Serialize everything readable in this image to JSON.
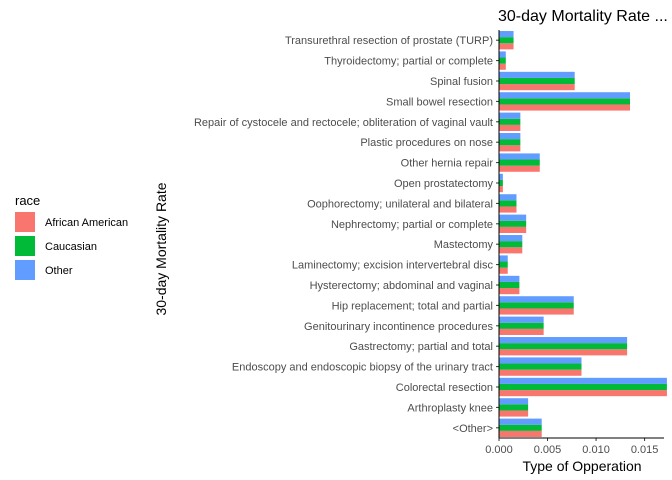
{
  "chart_data": {
    "type": "bar",
    "orientation": "horizontal",
    "title": "30-day Mortality Rate ...",
    "xlabel": "Type of Opperation",
    "ylabel": "30-day Mortality Rate",
    "xlim": [
      0,
      0.017
    ],
    "x_ticks": [
      {
        "value": 0.0,
        "label": "0.000"
      },
      {
        "value": 0.005,
        "label": "0.005"
      },
      {
        "value": 0.01,
        "label": "0.010"
      },
      {
        "value": 0.015,
        "label": "0.015"
      }
    ],
    "grid": false,
    "legend": {
      "title": "race",
      "position": "left"
    },
    "categories": [
      "Transurethral resection of prostate (TURP)",
      "Thyroidectomy; partial or complete",
      "Spinal fusion",
      "Small bowel resection",
      "Repair of cystocele and rectocele; obliteration of vaginal vault",
      "Plastic procedures on nose",
      "Other hernia repair",
      "Open prostatectomy",
      "Oophorectomy; unilateral and bilateral",
      "Nephrectomy; partial or complete",
      "Mastectomy",
      "Laminectomy; excision intervertebral disc",
      "Hysterectomy; abdominal and vaginal",
      "Hip replacement; total and partial",
      "Genitourinary incontinence procedures",
      "Gastrectomy; partial and total",
      "Endoscopy and endoscopic biopsy of the urinary tract",
      "Colorectal resection",
      "Arthroplasty knee",
      "<Other>"
    ],
    "series": [
      {
        "name": "African American",
        "color": "#F8766D",
        "values": [
          0.0015,
          0.0007,
          0.0078,
          0.0135,
          0.0022,
          0.0022,
          0.0042,
          0.0004,
          0.0018,
          0.0028,
          0.0024,
          0.0009,
          0.0021,
          0.0077,
          0.0046,
          0.0132,
          0.0085,
          0.0173,
          0.003,
          0.0044
        ]
      },
      {
        "name": "Caucasian",
        "color": "#00BA38",
        "values": [
          0.0015,
          0.0007,
          0.0078,
          0.0135,
          0.0022,
          0.0022,
          0.0042,
          0.0004,
          0.0018,
          0.0028,
          0.0024,
          0.0009,
          0.0021,
          0.0077,
          0.0046,
          0.0132,
          0.0085,
          0.0173,
          0.003,
          0.0044
        ]
      },
      {
        "name": "Other",
        "color": "#619CFF",
        "values": [
          0.0015,
          0.0007,
          0.0078,
          0.0135,
          0.0022,
          0.0022,
          0.0042,
          0.0004,
          0.0018,
          0.0028,
          0.0024,
          0.0009,
          0.0021,
          0.0077,
          0.0046,
          0.0132,
          0.0085,
          0.0173,
          0.003,
          0.0044
        ]
      }
    ]
  }
}
